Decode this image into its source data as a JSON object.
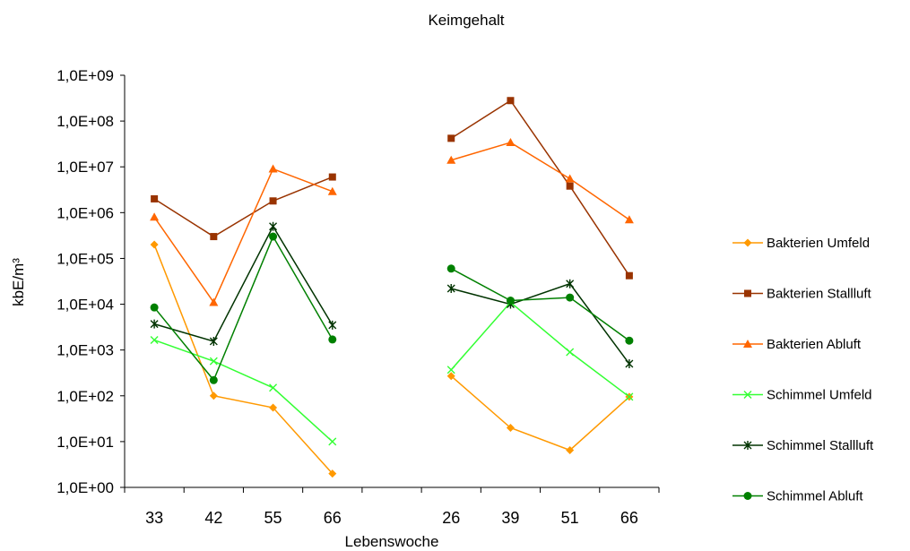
{
  "chart_data": {
    "type": "line",
    "title": "Keimgehalt",
    "xlabel": "Lebenswoche",
    "ylabel": "kbE/m³",
    "y_scale": "log",
    "ylim": [
      1,
      1000000000
    ],
    "y_ticks": [
      "1,0E+00",
      "1,0E+01",
      "1,0E+02",
      "1,0E+03",
      "1,0E+04",
      "1,0E+05",
      "1,0E+06",
      "1,0E+07",
      "1,0E+08",
      "1,0E+09"
    ],
    "categories": [
      "33",
      "42",
      "55",
      "66",
      "",
      "26",
      "39",
      "51",
      "66"
    ],
    "legend_position": "right",
    "grid": false,
    "series": [
      {
        "name": "Bakterien Umfeld",
        "color": "#FF9900",
        "marker": "diamond",
        "values": [
          200000,
          100,
          55,
          2,
          null,
          270,
          20,
          6.5,
          95
        ]
      },
      {
        "name": "Bakterien Stallluft",
        "color": "#993300",
        "marker": "square",
        "values": [
          2000000,
          300000,
          1800000,
          6000000,
          null,
          42000000,
          280000000,
          3800000,
          42000
        ]
      },
      {
        "name": "Bakterien Abluft",
        "color": "#FF6600",
        "marker": "triangle",
        "values": [
          800000,
          11000,
          9000000,
          2900000,
          null,
          14000000,
          34000000,
          5500000,
          700000
        ]
      },
      {
        "name": "Schimmel Umfeld",
        "color": "#33FF33",
        "marker": "x",
        "values": [
          1650,
          570,
          150,
          10,
          null,
          370,
          11000,
          900,
          95
        ]
      },
      {
        "name": "Schimmel Stallluft",
        "color": "#003300",
        "marker": "star",
        "values": [
          3700,
          1550,
          500000,
          3500,
          null,
          22000,
          10000,
          28000,
          500
        ]
      },
      {
        "name": "Schimmel Abluft",
        "color": "#008000",
        "marker": "circle",
        "values": [
          8500,
          220,
          300000,
          1700,
          null,
          60000,
          12000,
          14000,
          1600
        ]
      }
    ]
  }
}
